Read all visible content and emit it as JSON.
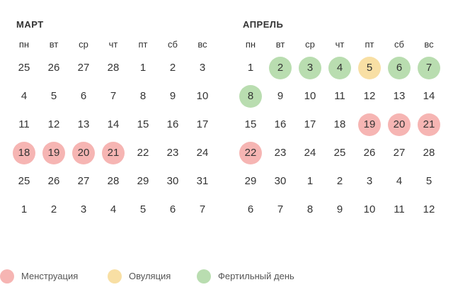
{
  "colors": {
    "menstruation": "#f6b5b3",
    "ovulation": "#f8dfa4",
    "fertile": "#b9ddb0"
  },
  "weekdays": [
    "пн",
    "вт",
    "ср",
    "чт",
    "пт",
    "сб",
    "вс"
  ],
  "months": [
    {
      "title": "МАРТ",
      "weeks": [
        [
          {
            "d": "25"
          },
          {
            "d": "26"
          },
          {
            "d": "27"
          },
          {
            "d": "28"
          },
          {
            "d": "1"
          },
          {
            "d": "2"
          },
          {
            "d": "3"
          }
        ],
        [
          {
            "d": "4"
          },
          {
            "d": "5"
          },
          {
            "d": "6"
          },
          {
            "d": "7"
          },
          {
            "d": "8"
          },
          {
            "d": "9"
          },
          {
            "d": "10"
          }
        ],
        [
          {
            "d": "11"
          },
          {
            "d": "12"
          },
          {
            "d": "13"
          },
          {
            "d": "14"
          },
          {
            "d": "15"
          },
          {
            "d": "16"
          },
          {
            "d": "17"
          }
        ],
        [
          {
            "d": "18",
            "t": "menstruation"
          },
          {
            "d": "19",
            "t": "menstruation"
          },
          {
            "d": "20",
            "t": "menstruation"
          },
          {
            "d": "21",
            "t": "menstruation"
          },
          {
            "d": "22"
          },
          {
            "d": "23"
          },
          {
            "d": "24"
          }
        ],
        [
          {
            "d": "25"
          },
          {
            "d": "26"
          },
          {
            "d": "27"
          },
          {
            "d": "28"
          },
          {
            "d": "29"
          },
          {
            "d": "30"
          },
          {
            "d": "31"
          }
        ],
        [
          {
            "d": "1"
          },
          {
            "d": "2"
          },
          {
            "d": "3"
          },
          {
            "d": "4"
          },
          {
            "d": "5"
          },
          {
            "d": "6"
          },
          {
            "d": "7"
          }
        ]
      ]
    },
    {
      "title": "АПРЕЛЬ",
      "weeks": [
        [
          {
            "d": "1"
          },
          {
            "d": "2",
            "t": "fertile"
          },
          {
            "d": "3",
            "t": "fertile"
          },
          {
            "d": "4",
            "t": "fertile"
          },
          {
            "d": "5",
            "t": "ovulation"
          },
          {
            "d": "6",
            "t": "fertile"
          },
          {
            "d": "7",
            "t": "fertile"
          }
        ],
        [
          {
            "d": "8",
            "t": "fertile"
          },
          {
            "d": "9"
          },
          {
            "d": "10"
          },
          {
            "d": "11"
          },
          {
            "d": "12"
          },
          {
            "d": "13"
          },
          {
            "d": "14"
          }
        ],
        [
          {
            "d": "15"
          },
          {
            "d": "16"
          },
          {
            "d": "17"
          },
          {
            "d": "18"
          },
          {
            "d": "19",
            "t": "menstruation"
          },
          {
            "d": "20",
            "t": "menstruation"
          },
          {
            "d": "21",
            "t": "menstruation"
          }
        ],
        [
          {
            "d": "22",
            "t": "menstruation"
          },
          {
            "d": "23"
          },
          {
            "d": "24"
          },
          {
            "d": "25"
          },
          {
            "d": "26"
          },
          {
            "d": "27"
          },
          {
            "d": "28"
          }
        ],
        [
          {
            "d": "29"
          },
          {
            "d": "30"
          },
          {
            "d": "1"
          },
          {
            "d": "2"
          },
          {
            "d": "3"
          },
          {
            "d": "4"
          },
          {
            "d": "5"
          }
        ],
        [
          {
            "d": "6"
          },
          {
            "d": "7"
          },
          {
            "d": "8"
          },
          {
            "d": "9"
          },
          {
            "d": "10"
          },
          {
            "d": "11"
          },
          {
            "d": "12"
          }
        ]
      ]
    }
  ],
  "legend": [
    {
      "label": "Менструация",
      "type": "menstruation"
    },
    {
      "label": "Овуляция",
      "type": "ovulation"
    },
    {
      "label": "Фертильный день",
      "type": "fertile"
    }
  ]
}
